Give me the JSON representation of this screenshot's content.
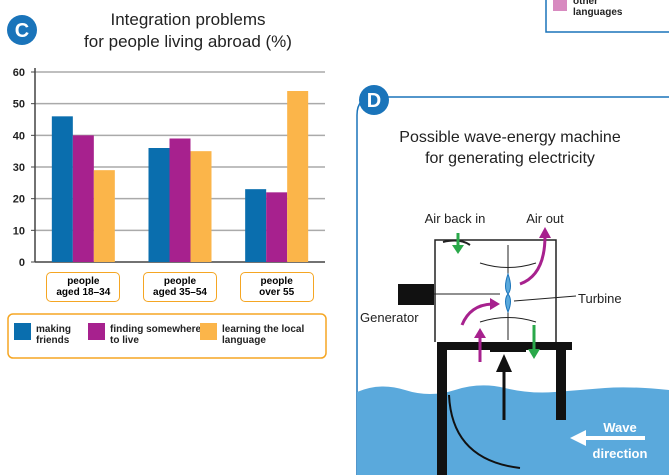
{
  "chart_data": {
    "type": "bar",
    "badge": "C",
    "title": [
      "Integration problems",
      "for people living abroad (%)"
    ],
    "categories": [
      "people aged 18–34",
      "people aged 35–54",
      "people over 55"
    ],
    "series": [
      {
        "name": "making friends",
        "color": "#0a6eae",
        "values": [
          46,
          36,
          23
        ]
      },
      {
        "name": "finding somewhere to live",
        "color": "#a7218e",
        "values": [
          40,
          39,
          22
        ]
      },
      {
        "name": "learning the local language",
        "color": "#fbb54a",
        "values": [
          29,
          35,
          54
        ]
      }
    ],
    "ylim": [
      0,
      60
    ],
    "yticks": [
      0,
      10,
      20,
      30,
      40,
      50,
      60
    ],
    "grid": true
  },
  "corner_legend": {
    "label": "other languages",
    "color": "#d88ac0"
  },
  "diagram": {
    "badge": "D",
    "title": [
      "Possible wave-energy machine",
      "for generating electricity"
    ],
    "labels": {
      "air_in": "Air back in",
      "air_out": "Air out",
      "turbine": "Turbine",
      "generator": "Generator",
      "wave": [
        "Wave",
        "direction"
      ]
    }
  }
}
